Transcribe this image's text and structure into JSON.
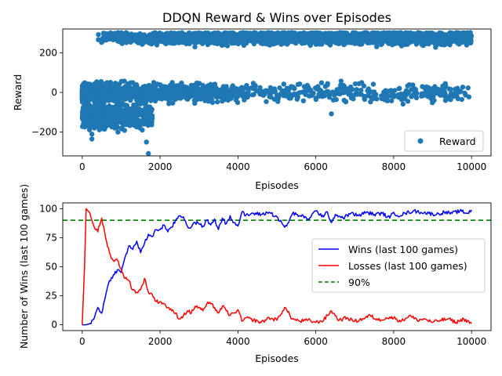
{
  "chart_data": [
    {
      "type": "scatter",
      "title": "DDQN Reward & Wins over Episodes",
      "xlabel": "Episodes",
      "ylabel": "Reward",
      "xlim": [
        -500,
        10500
      ],
      "ylim": [
        -320,
        320
      ],
      "xticks": [
        0,
        2000,
        4000,
        6000,
        8000,
        10000
      ],
      "xtick_labels": [
        "0",
        "2000",
        "4000",
        "6000",
        "8000",
        "10000"
      ],
      "yticks": [
        -200,
        0,
        200
      ],
      "ytick_labels": [
        "−200",
        "0",
        "200"
      ],
      "legend_position": "lower-right",
      "series": [
        {
          "name": "Reward",
          "color": "#1f77b4",
          "marker": "circle",
          "clusters": [
            {
              "label": "win outcomes",
              "x_range": [
                400,
                10000
              ],
              "center": 275,
              "spread": 25,
              "ramp_in_episodes": [
                400,
                2600
              ]
            },
            {
              "label": "loss/draw outcomes",
              "x_range": [
                0,
                10000
              ],
              "center": 0,
              "spread": 45,
              "fades_after": 4000
            },
            {
              "label": "early failures",
              "x_range": [
                0,
                1800
              ],
              "center": -120,
              "spread": 60
            }
          ],
          "notable_points": [
            {
              "x": 1700,
              "y": -308
            },
            {
              "x": 1650,
              "y": -250
            },
            {
              "x": 250,
              "y": -235
            },
            {
              "x": 250,
              "y": -210
            },
            {
              "x": 6400,
              "y": -108
            }
          ]
        }
      ]
    },
    {
      "type": "line",
      "xlabel": "Episodes",
      "ylabel": "Number of Wins (last 100 games)",
      "xlim": [
        -500,
        10500
      ],
      "ylim": [
        -5,
        105
      ],
      "xticks": [
        0,
        2000,
        4000,
        6000,
        8000,
        10000
      ],
      "xtick_labels": [
        "0",
        "2000",
        "4000",
        "6000",
        "8000",
        "10000"
      ],
      "yticks": [
        0,
        25,
        50,
        75,
        100
      ],
      "ytick_labels": [
        "0",
        "25",
        "50",
        "75",
        "100"
      ],
      "legend_position": "center-right",
      "series": [
        {
          "name": "Wins (last 100 games)",
          "color": "#0000ff",
          "style": "solid",
          "x": [
            0,
            100,
            200,
            300,
            400,
            500,
            600,
            700,
            800,
            900,
            1000,
            1100,
            1200,
            1300,
            1400,
            1500,
            1600,
            1700,
            1800,
            1900,
            2000,
            2100,
            2200,
            2300,
            2400,
            2500,
            2600,
            2700,
            2800,
            2900,
            3000,
            3100,
            3200,
            3300,
            3400,
            3500,
            3600,
            3700,
            3800,
            3900,
            4000,
            4100,
            4200,
            4400,
            4600,
            4800,
            5000,
            5200,
            5300,
            5400,
            5500,
            5600,
            5800,
            6000,
            6200,
            6300,
            6400,
            6500,
            6700,
            6900,
            7100,
            7300,
            7500,
            7700,
            7900,
            8000,
            8100,
            8300,
            8500,
            8700,
            8900,
            9100,
            9300,
            9500,
            9700,
            9900,
            10000
          ],
          "y": [
            0,
            0,
            1,
            5,
            15,
            10,
            25,
            38,
            43,
            47,
            45,
            58,
            68,
            65,
            72,
            62,
            70,
            78,
            76,
            82,
            82,
            86,
            80,
            84,
            90,
            94,
            93,
            85,
            84,
            88,
            87,
            85,
            90,
            86,
            91,
            82,
            92,
            87,
            94,
            88,
            85,
            97,
            94,
            96,
            95,
            97,
            93,
            84,
            88,
            96,
            95,
            94,
            91,
            98,
            93,
            97,
            88,
            95,
            92,
            96,
            94,
            97,
            95,
            96,
            92,
            97,
            94,
            96,
            98,
            97,
            96,
            95,
            97,
            96,
            98,
            96,
            99
          ]
        },
        {
          "name": "Losses (last 100 games)",
          "color": "#ff0000",
          "style": "solid",
          "x": [
            0,
            60,
            100,
            150,
            200,
            300,
            400,
            500,
            600,
            700,
            800,
            900,
            1000,
            1100,
            1200,
            1300,
            1400,
            1500,
            1600,
            1700,
            1800,
            1900,
            2000,
            2100,
            2200,
            2300,
            2400,
            2500,
            2600,
            2700,
            2800,
            2900,
            3000,
            3100,
            3200,
            3300,
            3400,
            3500,
            3600,
            3700,
            3800,
            3900,
            4000,
            4100,
            4200,
            4400,
            4600,
            4800,
            5000,
            5200,
            5400,
            5600,
            5800,
            6000,
            6200,
            6400,
            6600,
            6800,
            7000,
            7200,
            7400,
            7600,
            7800,
            8000,
            8200,
            8400,
            8600,
            8800,
            9000,
            9200,
            9400,
            9600,
            9800,
            10000
          ],
          "y": [
            0,
            50,
            100,
            98,
            96,
            85,
            80,
            92,
            75,
            62,
            55,
            56,
            48,
            40,
            38,
            30,
            28,
            30,
            40,
            28,
            26,
            20,
            20,
            18,
            15,
            12,
            10,
            5,
            8,
            12,
            10,
            16,
            15,
            12,
            18,
            18,
            15,
            10,
            16,
            12,
            8,
            10,
            13,
            3,
            6,
            4,
            2,
            6,
            4,
            15,
            5,
            3,
            4,
            2,
            4,
            12,
            4,
            6,
            3,
            5,
            8,
            4,
            6,
            6,
            3,
            8,
            4,
            5,
            2,
            4,
            5,
            2,
            5,
            1
          ]
        },
        {
          "name": "90%",
          "color": "#008000",
          "style": "dashed",
          "constant_y": 90
        }
      ]
    }
  ]
}
